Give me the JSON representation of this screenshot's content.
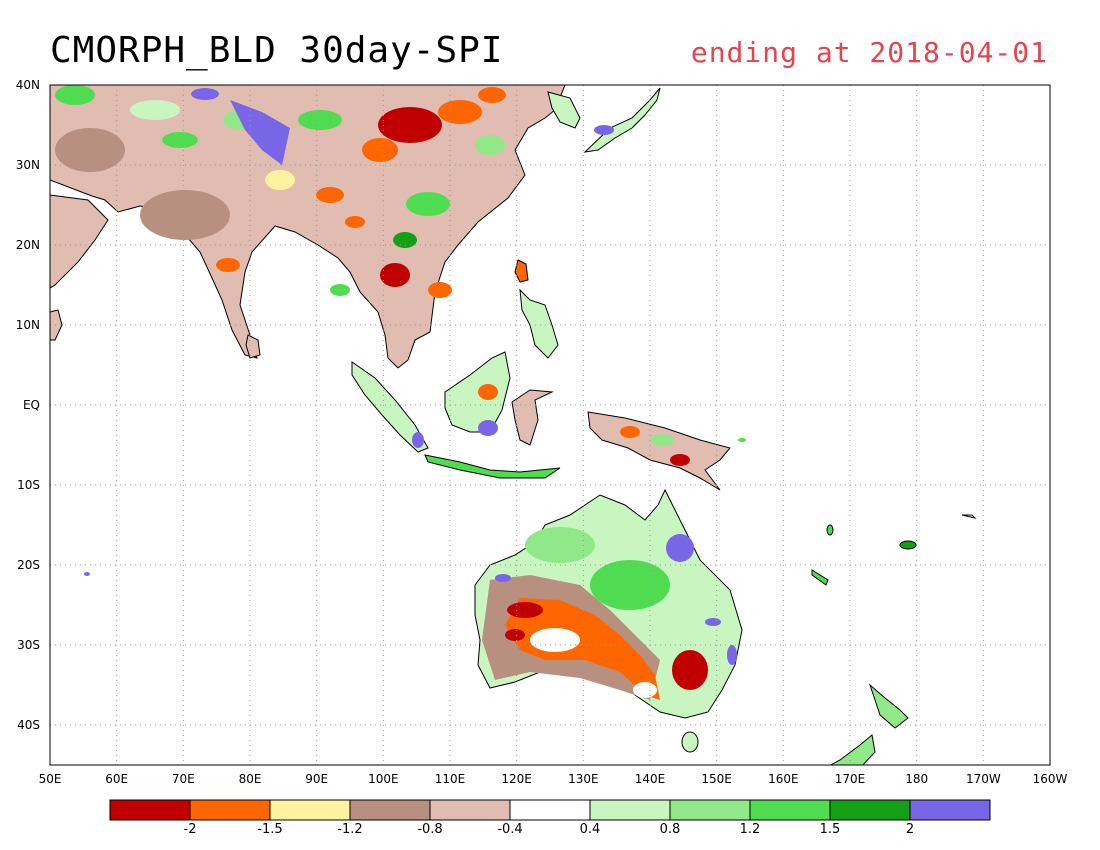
{
  "title": "CMORPH_BLD 30day-SPI",
  "subtitle": "ending at 2018-04-01",
  "map": {
    "lon_range": [
      50,
      200
    ],
    "lat_range": [
      -45,
      40
    ],
    "lat_labels": [
      {
        "lat": 40,
        "label": "40N"
      },
      {
        "lat": 30,
        "label": "30N"
      },
      {
        "lat": 20,
        "label": "20N"
      },
      {
        "lat": 10,
        "label": "10N"
      },
      {
        "lat": 0,
        "label": "EQ"
      },
      {
        "lat": -10,
        "label": "10S"
      },
      {
        "lat": -20,
        "label": "20S"
      },
      {
        "lat": -30,
        "label": "30S"
      },
      {
        "lat": -40,
        "label": "40S"
      }
    ],
    "lon_labels": [
      {
        "lon": 50,
        "label": "50E"
      },
      {
        "lon": 60,
        "label": "60E"
      },
      {
        "lon": 70,
        "label": "70E"
      },
      {
        "lon": 80,
        "label": "80E"
      },
      {
        "lon": 90,
        "label": "90E"
      },
      {
        "lon": 100,
        "label": "100E"
      },
      {
        "lon": 110,
        "label": "110E"
      },
      {
        "lon": 120,
        "label": "120E"
      },
      {
        "lon": 130,
        "label": "130E"
      },
      {
        "lon": 140,
        "label": "140E"
      },
      {
        "lon": 150,
        "label": "150E"
      },
      {
        "lon": 160,
        "label": "160E"
      },
      {
        "lon": 170,
        "label": "170E"
      },
      {
        "lon": 180,
        "label": "180"
      },
      {
        "lon": 190,
        "label": "170W"
      },
      {
        "lon": 200,
        "label": "160W"
      }
    ],
    "gridlines": "dotted"
  },
  "colorbar": {
    "colors": [
      "#c00000",
      "#ff6600",
      "#fff3a0",
      "#b89080",
      "#e0bdb0",
      "#ffffff",
      "#c8f5c0",
      "#90e888",
      "#50dc50",
      "#14a014",
      "#7866e6"
    ],
    "labels": [
      "-2",
      "-1.5",
      "-1.2",
      "-0.8",
      "-0.4",
      "0.4",
      "0.8",
      "1.2",
      "1.5",
      "2"
    ]
  }
}
